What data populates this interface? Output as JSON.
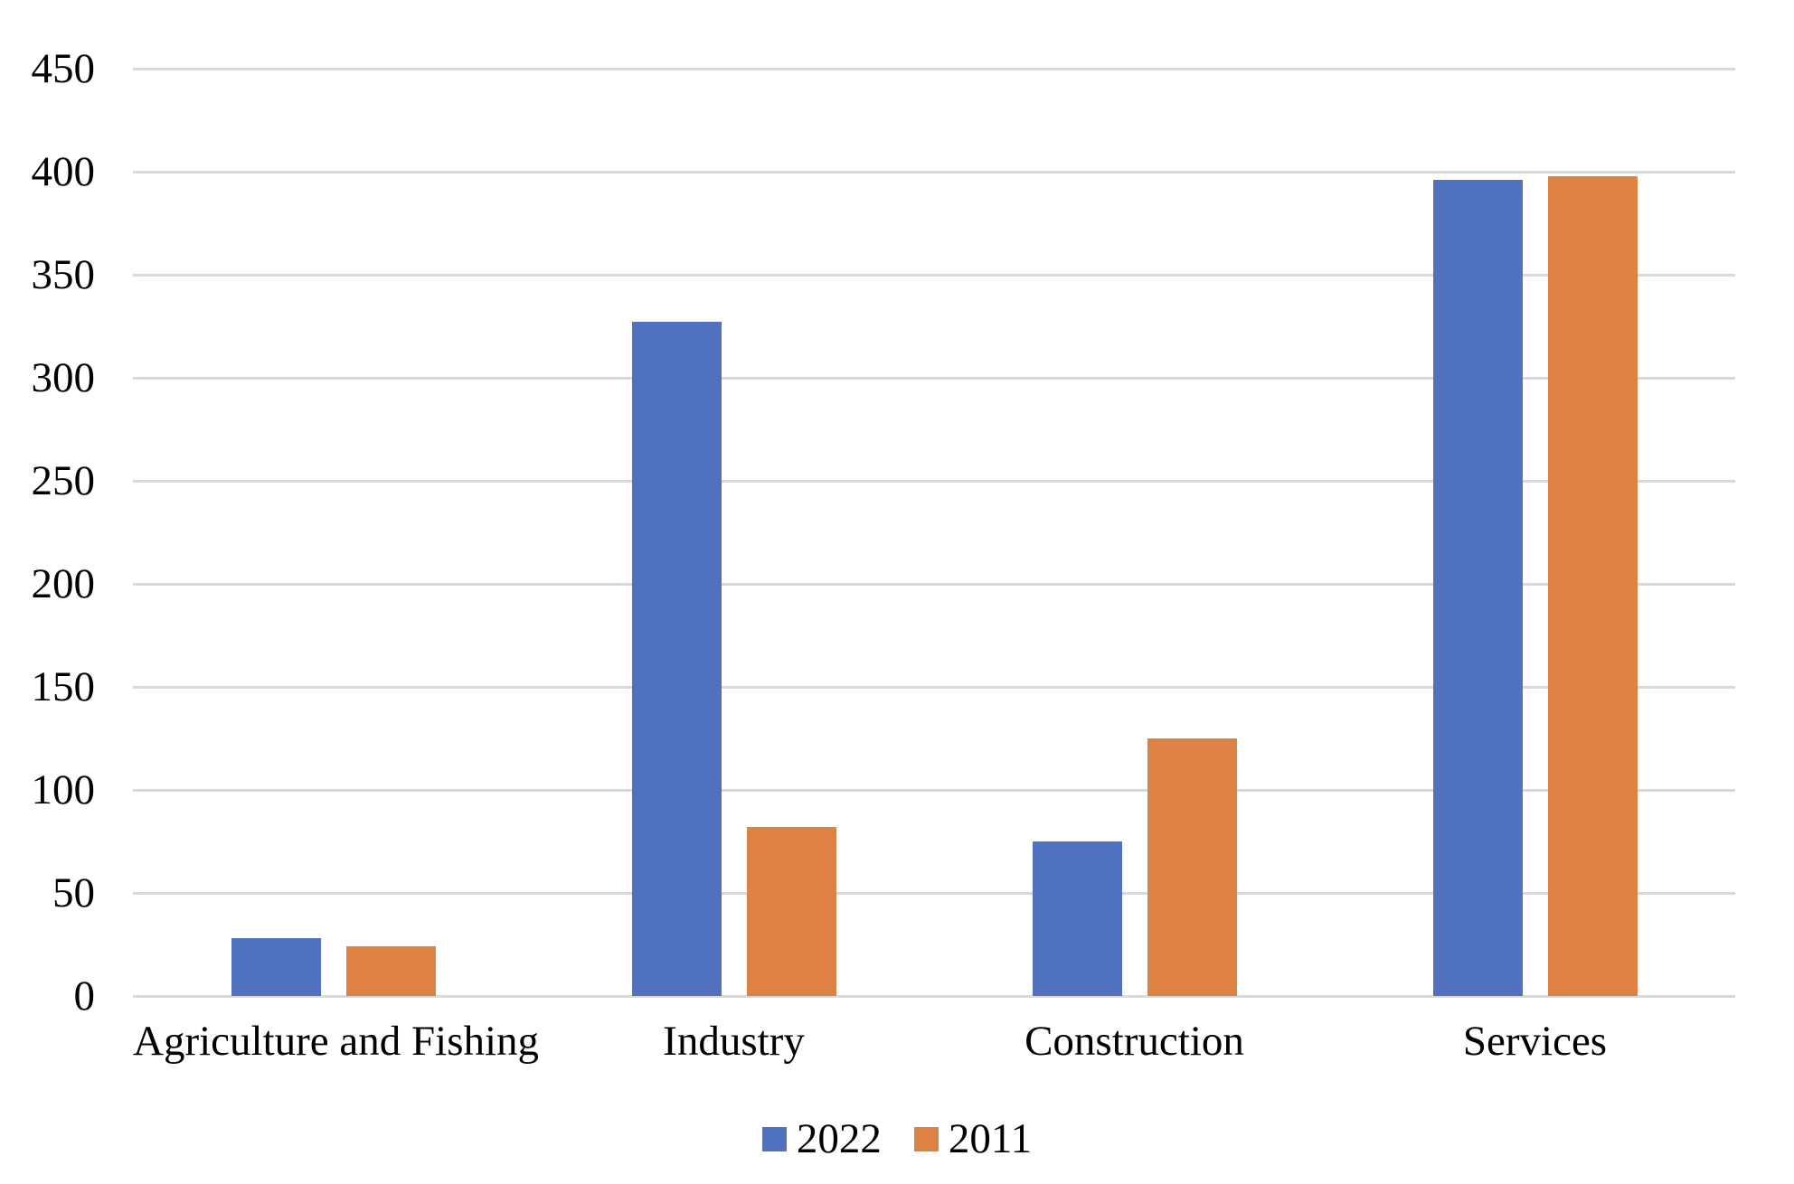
{
  "chart_data": {
    "type": "bar",
    "title": "",
    "xlabel": "",
    "ylabel": "",
    "categories": [
      "Agriculture and Fishing",
      "Industry",
      "Construction",
      "Services"
    ],
    "series": [
      {
        "name": "2022",
        "color": "#4F71BE",
        "values": [
          28,
          327,
          75,
          396
        ]
      },
      {
        "name": "2011",
        "color": "#DD8243",
        "values": [
          24,
          82,
          125,
          398
        ]
      }
    ],
    "ylim": [
      0,
      450
    ],
    "yticks": [
      0,
      50,
      100,
      150,
      200,
      250,
      300,
      350,
      400,
      450
    ],
    "grid": "horizontal",
    "gridline_color": "#D9D9D9",
    "background_color": "#FFFFFF",
    "text_color": "#000000",
    "legend_position": "bottom",
    "legend_entries": [
      "2022",
      "2011"
    ]
  }
}
